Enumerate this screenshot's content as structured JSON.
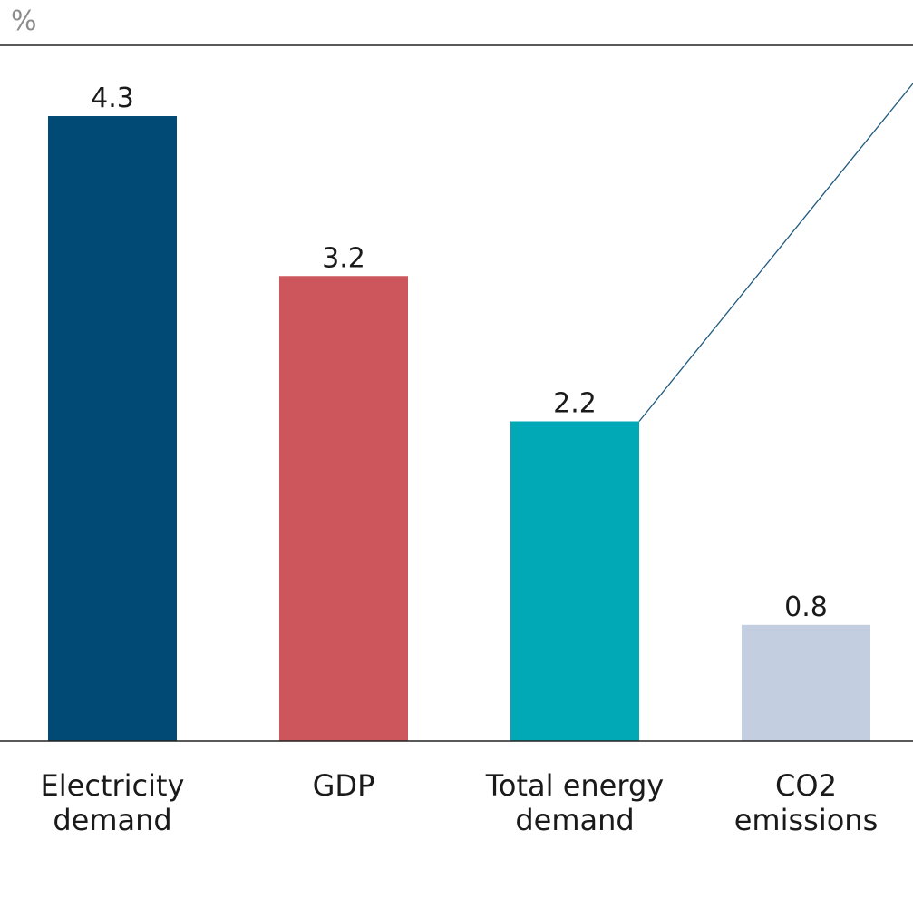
{
  "chart_data": {
    "type": "bar",
    "unit_label": "%",
    "categories": [
      [
        "Electricity",
        "demand"
      ],
      [
        "GDP"
      ],
      [
        "Total energy",
        "demand"
      ],
      [
        "CO2",
        "emissions"
      ]
    ],
    "values": [
      4.3,
      3.2,
      2.2,
      0.8
    ],
    "value_labels": [
      "4.3",
      "3.2",
      "2.2",
      "0.8"
    ],
    "colors": [
      "#004a75",
      "#cd565c",
      "#00a9b5",
      "#c3cfe0"
    ],
    "connector_color": "#1f5a7f",
    "grid": false
  }
}
